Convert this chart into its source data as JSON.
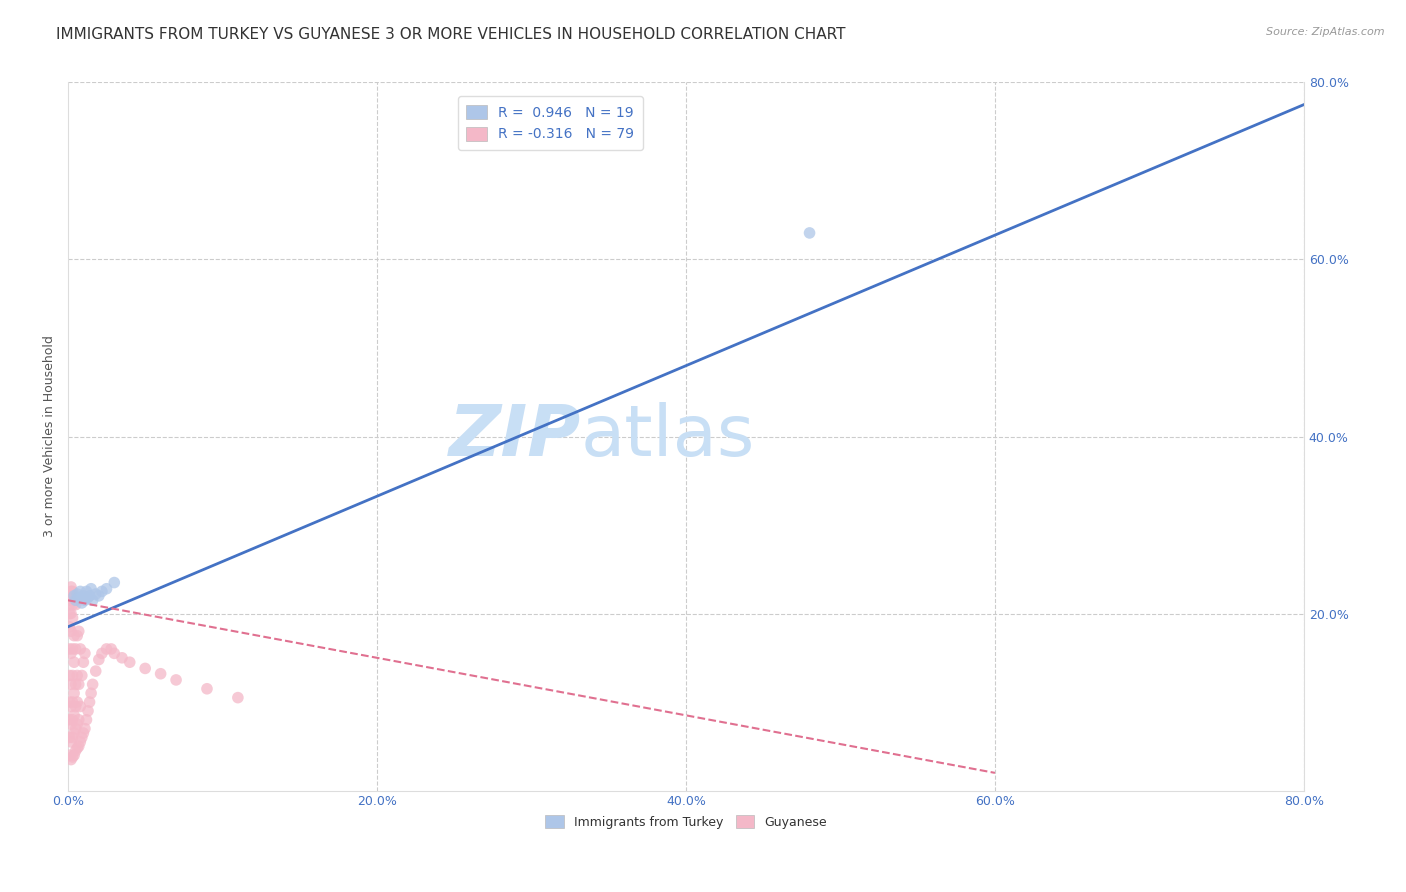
{
  "title": "IMMIGRANTS FROM TURKEY VS GUYANESE 3 OR MORE VEHICLES IN HOUSEHOLD CORRELATION CHART",
  "source": "Source: ZipAtlas.com",
  "ylabel": "3 or more Vehicles in Household",
  "xlim": [
    0.0,
    0.8
  ],
  "ylim": [
    0.0,
    0.8
  ],
  "xticks": [
    0.0,
    0.2,
    0.4,
    0.6,
    0.8
  ],
  "yticks": [
    0.0,
    0.2,
    0.4,
    0.6,
    0.8
  ],
  "xtick_labels": [
    "0.0%",
    "20.0%",
    "40.0%",
    "60.0%",
    "80.0%"
  ],
  "right_ytick_labels": [
    "20.0%",
    "40.0%",
    "60.0%",
    "80.0%"
  ],
  "watermark_zip": "ZIP",
  "watermark_atlas": "atlas",
  "legend_entries": [
    {
      "label": "R =  0.946   N = 19",
      "color": "#aec6e8"
    },
    {
      "label": "R = -0.316   N = 79",
      "color": "#f4b8c8"
    }
  ],
  "blue_scatter_x": [
    0.004,
    0.005,
    0.006,
    0.007,
    0.008,
    0.009,
    0.01,
    0.011,
    0.012,
    0.013,
    0.014,
    0.015,
    0.016,
    0.018,
    0.02,
    0.022,
    0.025,
    0.03,
    0.48
  ],
  "blue_scatter_y": [
    0.22,
    0.215,
    0.222,
    0.218,
    0.225,
    0.212,
    0.22,
    0.215,
    0.225,
    0.218,
    0.22,
    0.228,
    0.215,
    0.222,
    0.22,
    0.225,
    0.228,
    0.235,
    0.63
  ],
  "pink_scatter_x": [
    0.001,
    0.001,
    0.001,
    0.001,
    0.001,
    0.001,
    0.001,
    0.001,
    0.001,
    0.001,
    0.002,
    0.002,
    0.002,
    0.002,
    0.002,
    0.002,
    0.002,
    0.002,
    0.002,
    0.002,
    0.002,
    0.003,
    0.003,
    0.003,
    0.003,
    0.003,
    0.003,
    0.003,
    0.003,
    0.003,
    0.004,
    0.004,
    0.004,
    0.004,
    0.004,
    0.004,
    0.004,
    0.005,
    0.005,
    0.005,
    0.005,
    0.005,
    0.005,
    0.006,
    0.006,
    0.006,
    0.006,
    0.006,
    0.007,
    0.007,
    0.007,
    0.007,
    0.008,
    0.008,
    0.008,
    0.009,
    0.009,
    0.01,
    0.01,
    0.011,
    0.011,
    0.012,
    0.013,
    0.014,
    0.015,
    0.016,
    0.018,
    0.02,
    0.022,
    0.025,
    0.028,
    0.03,
    0.035,
    0.04,
    0.05,
    0.06,
    0.07,
    0.09,
    0.11
  ],
  "pink_scatter_y": [
    0.04,
    0.06,
    0.08,
    0.1,
    0.13,
    0.16,
    0.185,
    0.2,
    0.21,
    0.22,
    0.035,
    0.055,
    0.075,
    0.095,
    0.12,
    0.155,
    0.18,
    0.2,
    0.215,
    0.225,
    0.23,
    0.038,
    0.06,
    0.08,
    0.1,
    0.13,
    0.16,
    0.195,
    0.21,
    0.225,
    0.04,
    0.065,
    0.085,
    0.11,
    0.145,
    0.175,
    0.215,
    0.045,
    0.07,
    0.095,
    0.12,
    0.16,
    0.21,
    0.048,
    0.075,
    0.1,
    0.13,
    0.175,
    0.05,
    0.08,
    0.12,
    0.18,
    0.055,
    0.095,
    0.16,
    0.06,
    0.13,
    0.065,
    0.145,
    0.07,
    0.155,
    0.08,
    0.09,
    0.1,
    0.11,
    0.12,
    0.135,
    0.148,
    0.155,
    0.16,
    0.16,
    0.155,
    0.15,
    0.145,
    0.138,
    0.132,
    0.125,
    0.115,
    0.105
  ],
  "blue_line_x": [
    0.0,
    0.8
  ],
  "blue_line_y": [
    0.185,
    0.775
  ],
  "pink_line_x": [
    0.0,
    0.6
  ],
  "pink_line_y": [
    0.215,
    0.02
  ],
  "blue_line_color": "#4472c4",
  "pink_line_color": "#e07090",
  "blue_scatter_color": "#aec6e8",
  "pink_scatter_color": "#f4b8c8",
  "scatter_size": 70,
  "scatter_alpha": 0.75,
  "grid_color": "#cccccc",
  "background_color": "#ffffff",
  "title_fontsize": 11,
  "axis_fontsize": 9,
  "tick_fontsize": 9,
  "watermark_color_zip": "#c8dff5",
  "watermark_color_atlas": "#c8dff5",
  "watermark_fontsize": 52
}
